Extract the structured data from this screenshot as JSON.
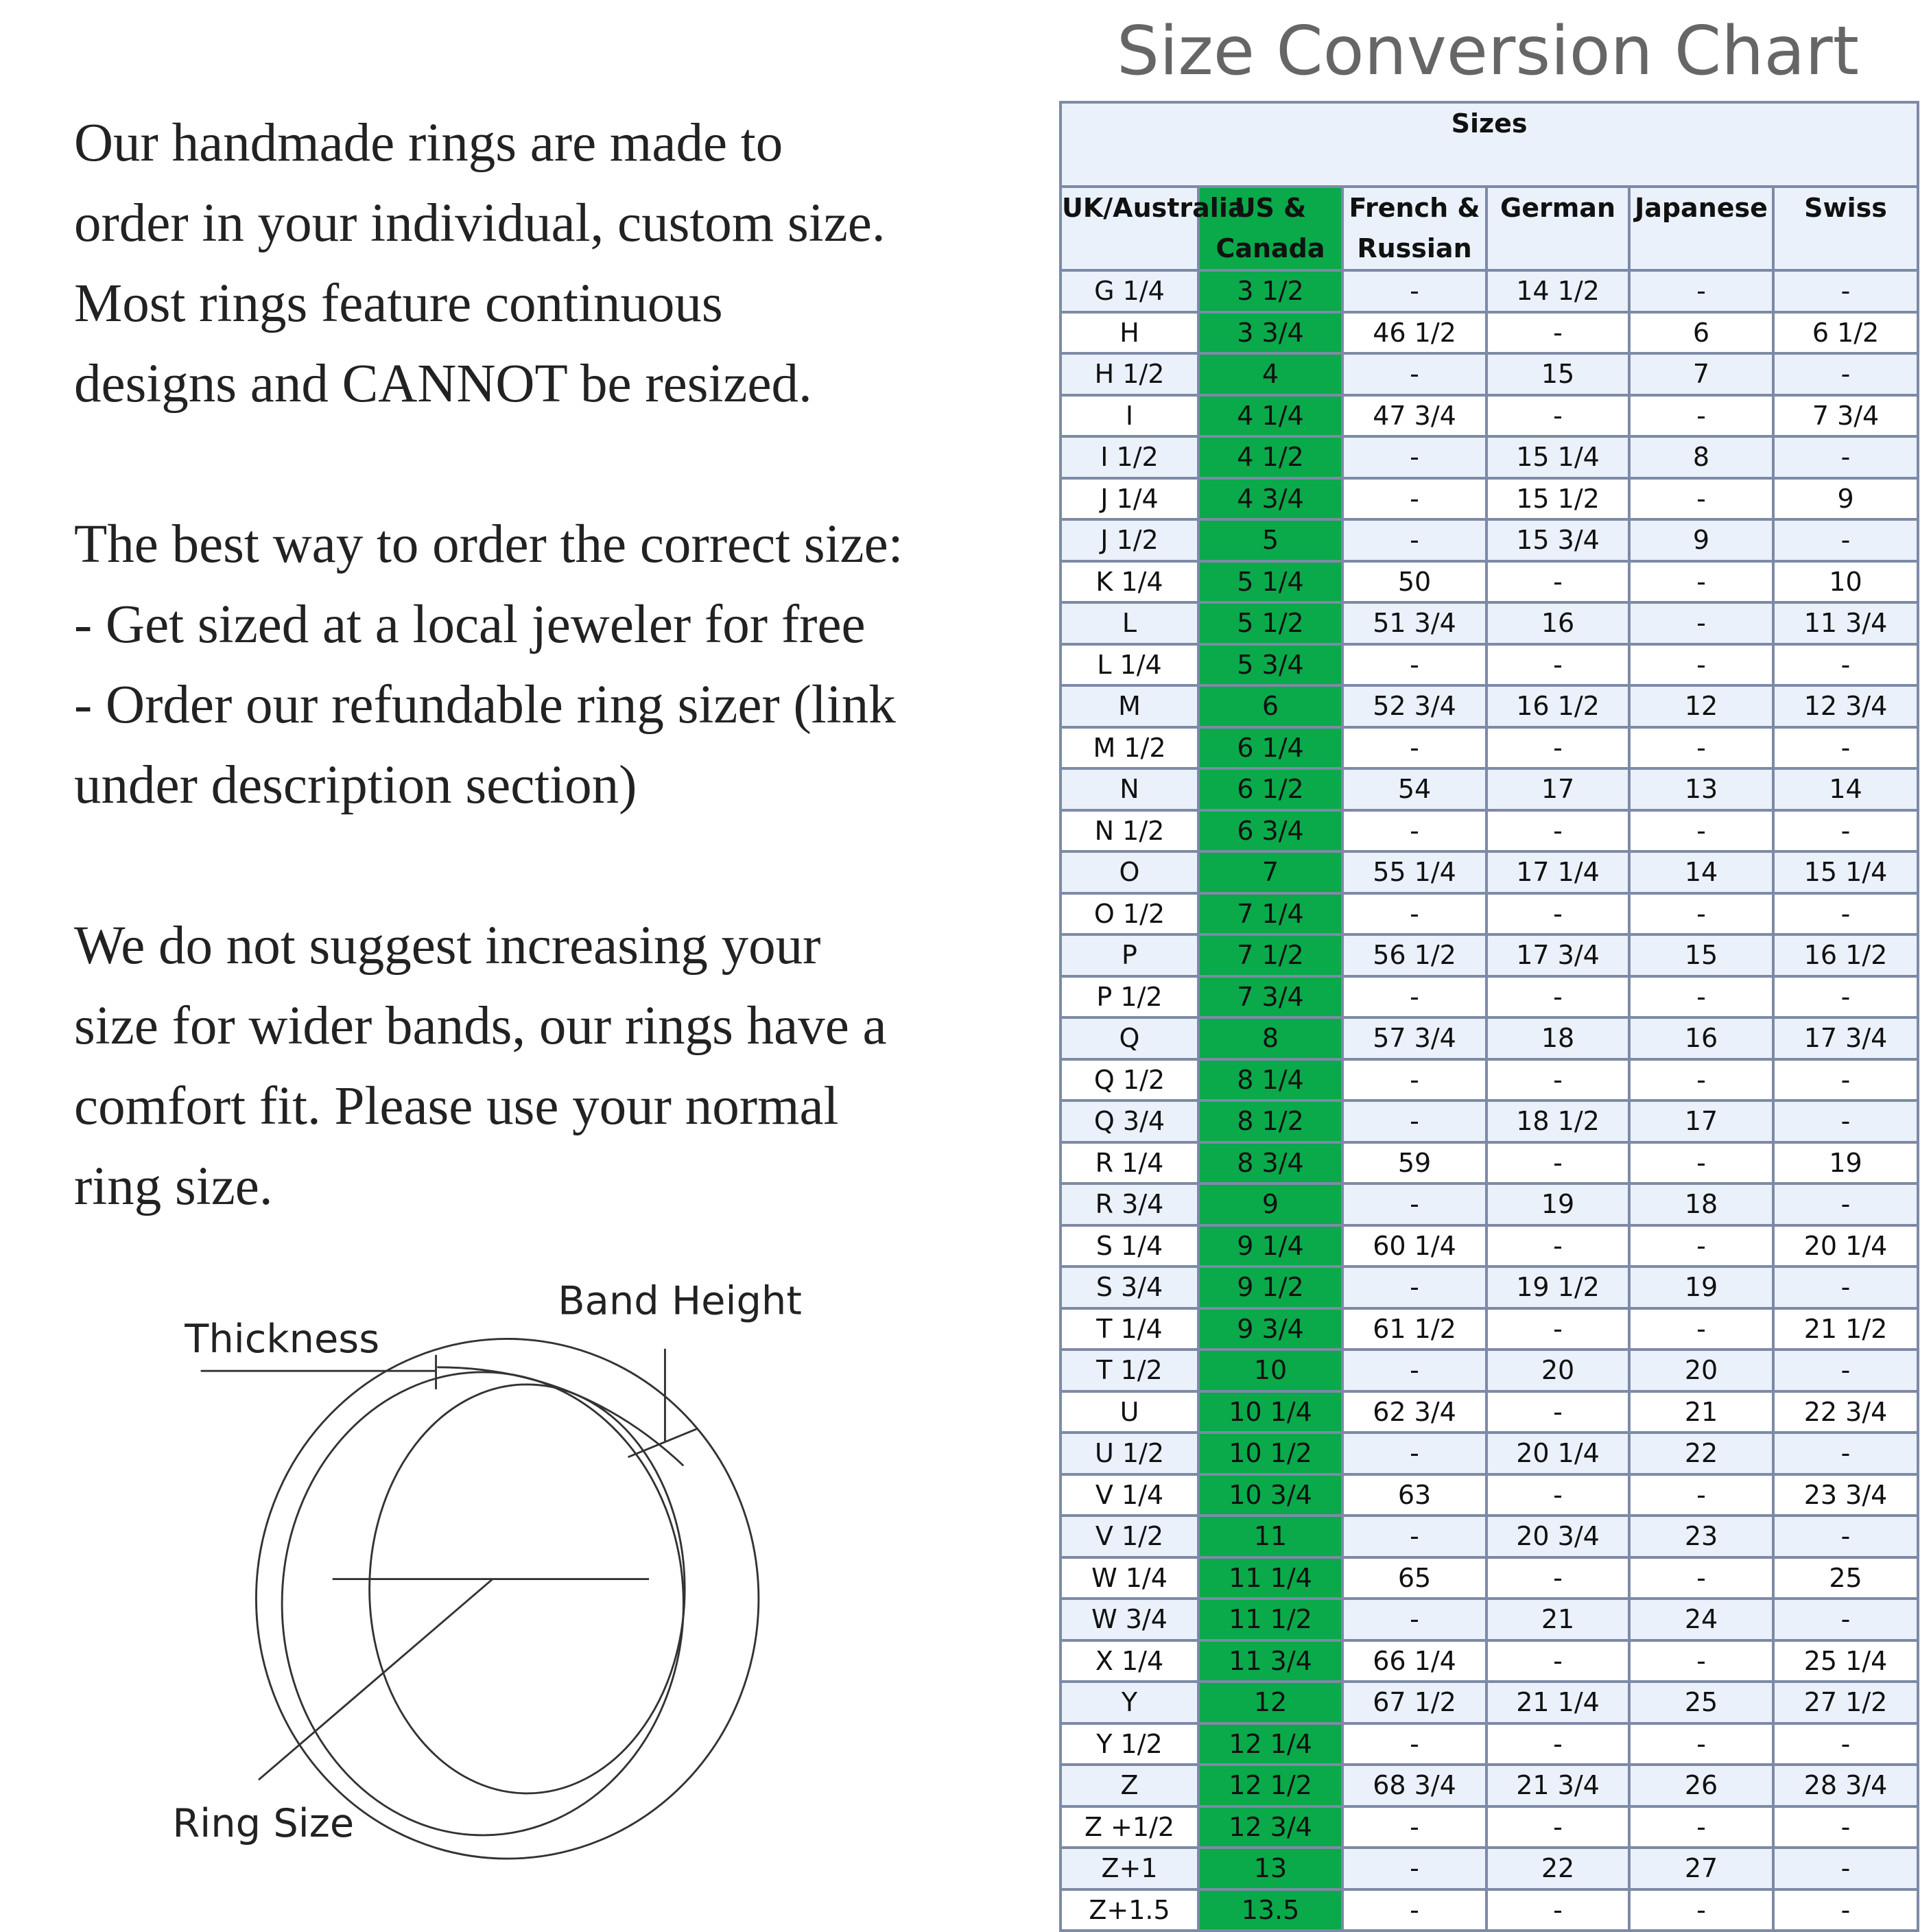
{
  "title": "Size Conversion Chart",
  "intro": [
    "Our handmade rings are made to",
    "order in your individual, custom size.",
    "Most rings feature continuous",
    "designs and CANNOT be resized.",
    "The best way to order the correct size:",
    "- Get sized at a local jeweler for free",
    "- Order our refundable ring sizer (link",
    "under description section)",
    "We do not suggest increasing your",
    "size for wider bands, our rings have a",
    "comfort fit. Please use your normal",
    "ring size."
  ],
  "diagram": {
    "thickness": "Thickness",
    "band_height": "Band Height",
    "ring_size": "Ring Size"
  },
  "table": {
    "group_header": "Sizes",
    "columns": [
      "UK/Australia",
      "US & Canada",
      "French & Russian",
      "German",
      "Japanese",
      "Swiss"
    ],
    "highlight_color": "#0aa94a",
    "rows": [
      [
        "G 1/4",
        "3 1/2",
        "-",
        "14 1/2",
        "-",
        "-"
      ],
      [
        "H",
        "3 3/4",
        "46 1/2",
        "-",
        "6",
        "6 1/2"
      ],
      [
        "H 1/2",
        "4",
        "-",
        "15",
        "7",
        "-"
      ],
      [
        "I",
        "4 1/4",
        "47 3/4",
        "-",
        "-",
        "7 3/4"
      ],
      [
        "I 1/2",
        "4 1/2",
        "-",
        "15 1/4",
        "8",
        "-"
      ],
      [
        "J 1/4",
        "4 3/4",
        "-",
        "15 1/2",
        "-",
        "9"
      ],
      [
        "J 1/2",
        "5",
        "-",
        "15 3/4",
        "9",
        "-"
      ],
      [
        "K 1/4",
        "5 1/4",
        "50",
        "-",
        "-",
        "10"
      ],
      [
        "L",
        "5 1/2",
        "51 3/4",
        "16",
        "-",
        "11 3/4"
      ],
      [
        "L 1/4",
        "5 3/4",
        "-",
        "-",
        "-",
        "-"
      ],
      [
        "M",
        "6",
        "52 3/4",
        "16 1/2",
        "12",
        "12 3/4"
      ],
      [
        "M 1/2",
        "6 1/4",
        "-",
        "-",
        "-",
        "-"
      ],
      [
        "N",
        "6 1/2",
        "54",
        "17",
        "13",
        "14"
      ],
      [
        "N 1/2",
        "6 3/4",
        "-",
        "-",
        "-",
        "-"
      ],
      [
        "O",
        "7",
        "55 1/4",
        "17 1/4",
        "14",
        "15 1/4"
      ],
      [
        "O 1/2",
        "7 1/4",
        "-",
        "-",
        "-",
        "-"
      ],
      [
        "P",
        "7 1/2",
        "56 1/2",
        "17 3/4",
        "15",
        "16 1/2"
      ],
      [
        "P 1/2",
        "7 3/4",
        "-",
        "-",
        "-",
        "-"
      ],
      [
        "Q",
        "8",
        "57 3/4",
        "18",
        "16",
        "17 3/4"
      ],
      [
        "Q 1/2",
        "8 1/4",
        "-",
        "-",
        "-",
        "-"
      ],
      [
        "Q 3/4",
        "8 1/2",
        "-",
        "18 1/2",
        "17",
        "-"
      ],
      [
        "R 1/4",
        "8 3/4",
        "59",
        "-",
        "-",
        "19"
      ],
      [
        "R 3/4",
        "9",
        "-",
        "19",
        "18",
        "-"
      ],
      [
        "S 1/4",
        "9 1/4",
        "60 1/4",
        "-",
        "-",
        "20 1/4"
      ],
      [
        "S 3/4",
        "9 1/2",
        "-",
        "19 1/2",
        "19",
        "-"
      ],
      [
        "T 1/4",
        "9 3/4",
        "61 1/2",
        "-",
        "-",
        "21 1/2"
      ],
      [
        "T 1/2",
        "10",
        "-",
        "20",
        "20",
        "-"
      ],
      [
        "U",
        "10 1/4",
        "62 3/4",
        "-",
        "21",
        "22 3/4"
      ],
      [
        "U 1/2",
        "10 1/2",
        "-",
        "20 1/4",
        "22",
        "-"
      ],
      [
        "V 1/4",
        "10 3/4",
        "63",
        "-",
        "-",
        "23 3/4"
      ],
      [
        "V 1/2",
        "11",
        "-",
        "20 3/4",
        "23",
        "-"
      ],
      [
        "W 1/4",
        "11 1/4",
        "65",
        "-",
        "-",
        "25"
      ],
      [
        "W 3/4",
        "11 1/2",
        "-",
        "21",
        "24",
        "-"
      ],
      [
        "X 1/4",
        "11 3/4",
        "66 1/4",
        "-",
        "-",
        "25 1/4"
      ],
      [
        "Y",
        "12",
        "67 1/2",
        "21 1/4",
        "25",
        "27 1/2"
      ],
      [
        "Y 1/2",
        "12 1/4",
        "-",
        "-",
        "-",
        "-"
      ],
      [
        "Z",
        "12 1/2",
        "68 3/4",
        "21 3/4",
        "26",
        "28 3/4"
      ],
      [
        "Z +1/2",
        "12 3/4",
        "-",
        "-",
        "-",
        "-"
      ],
      [
        "Z+1",
        "13",
        "-",
        "22",
        "27",
        "-"
      ],
      [
        "Z+1.5",
        "13.5",
        "-",
        "-",
        "-",
        "-"
      ]
    ]
  }
}
